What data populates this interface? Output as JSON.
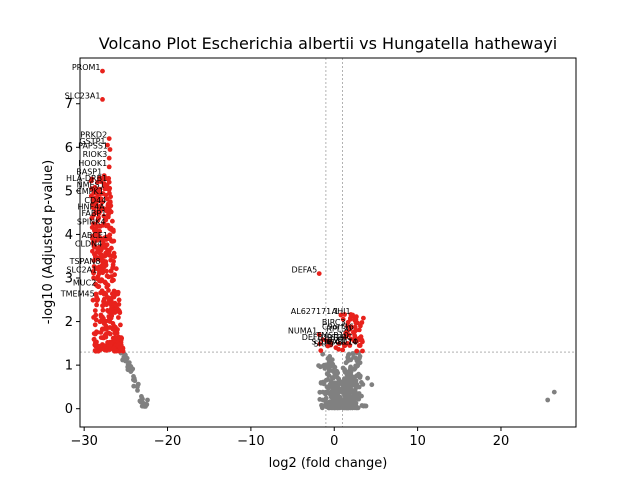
{
  "chart_data": {
    "type": "scatter",
    "title": "Volcano Plot Escherichia albertii vs Hungatella hathewayi",
    "xlabel": "log2 (fold change)",
    "ylabel": "-log10 (Adjusted p-value)",
    "xlim": [
      -30.5,
      29.0
    ],
    "ylim": [
      -0.42,
      8.05
    ],
    "xticks": [
      -30,
      -20,
      -10,
      0,
      10,
      20
    ],
    "yticks": [
      0,
      1,
      2,
      3,
      4,
      5,
      6,
      7
    ],
    "threshold_lines": {
      "vertical": [
        -1,
        1
      ],
      "horizontal": 1.3
    },
    "colors": {
      "significant": "#e8221c",
      "not_significant": "#808080",
      "threshold_line": "#808080"
    },
    "labeled_genes": [
      {
        "name": "PROM1",
        "x": -27.8,
        "y": 7.75
      },
      {
        "name": "SLC23A1",
        "x": -27.8,
        "y": 7.1
      },
      {
        "name": "PRKD2",
        "x": -27.0,
        "y": 6.2
      },
      {
        "name": "GSTP1",
        "x": -27.2,
        "y": 6.05
      },
      {
        "name": "PAPSS1",
        "x": -26.9,
        "y": 5.95
      },
      {
        "name": "RIOK3",
        "x": -27.0,
        "y": 5.75
      },
      {
        "name": "HOOK1",
        "x": -27.0,
        "y": 5.55
      },
      {
        "name": "BASP1",
        "x": -27.6,
        "y": 5.35
      },
      {
        "name": "HLA-DRB1",
        "x": -27.0,
        "y": 5.2
      },
      {
        "name": "NMES1",
        "x": -27.3,
        "y": 5.05
      },
      {
        "name": "CMPK1",
        "x": -27.4,
        "y": 4.9
      },
      {
        "name": "CD44",
        "x": -27.1,
        "y": 4.7
      },
      {
        "name": "HNF4A",
        "x": -27.3,
        "y": 4.55
      },
      {
        "name": "FABP1",
        "x": -27.1,
        "y": 4.4
      },
      {
        "name": "SPINK4",
        "x": -27.2,
        "y": 4.2
      },
      {
        "name": "ABCE1",
        "x": -26.9,
        "y": 3.9
      },
      {
        "name": "CLDN4",
        "x": -27.6,
        "y": 3.7
      },
      {
        "name": "TSPAN8",
        "x": -27.8,
        "y": 3.3
      },
      {
        "name": "SLC2A1",
        "x": -28.2,
        "y": 3.1
      },
      {
        "name": "MUC2",
        "x": -28.3,
        "y": 2.8
      },
      {
        "name": "TMEM45",
        "x": -28.5,
        "y": 2.55
      },
      {
        "name": "DEFA5",
        "x": -1.8,
        "y": 3.1
      },
      {
        "name": "AL627171.1",
        "x": 0.8,
        "y": 2.15
      },
      {
        "name": "NUMA1",
        "x": -1.8,
        "y": 1.7
      },
      {
        "name": "DEFB1",
        "x": -0.5,
        "y": 1.55
      },
      {
        "name": "SRP9",
        "x": 0.2,
        "y": 1.4
      },
      {
        "name": "GPX1",
        "x": 1.6,
        "y": 1.5
      },
      {
        "name": "TMSB10",
        "x": 2.0,
        "y": 1.6
      },
      {
        "name": "BIRC3",
        "x": 1.6,
        "y": 1.9
      },
      {
        "name": "RPL30",
        "x": 2.3,
        "y": 1.75
      },
      {
        "name": "C9orf16",
        "x": 2.6,
        "y": 1.8
      },
      {
        "name": "AHI1",
        "x": 2.2,
        "y": 2.15
      },
      {
        "name": "PTPRC",
        "x": 2.4,
        "y": 1.55
      },
      {
        "name": "CD74",
        "x": 3.0,
        "y": 1.45
      },
      {
        "name": "CXCL10",
        "x": 3.1,
        "y": 1.45
      },
      {
        "name": "S100A8",
        "x": 1.2,
        "y": 1.45
      }
    ],
    "outlier_points": [
      {
        "x": 25.6,
        "y": 0.2
      },
      {
        "x": 26.4,
        "y": 0.38
      },
      {
        "x": -22.4,
        "y": 0.2
      },
      {
        "x": -23.0,
        "y": 0.22
      },
      {
        "x": -23.6,
        "y": 0.42
      },
      {
        "x": 4.5,
        "y": 0.55
      },
      {
        "x": 4.0,
        "y": 0.7
      }
    ],
    "grid": false,
    "legend": "none"
  }
}
